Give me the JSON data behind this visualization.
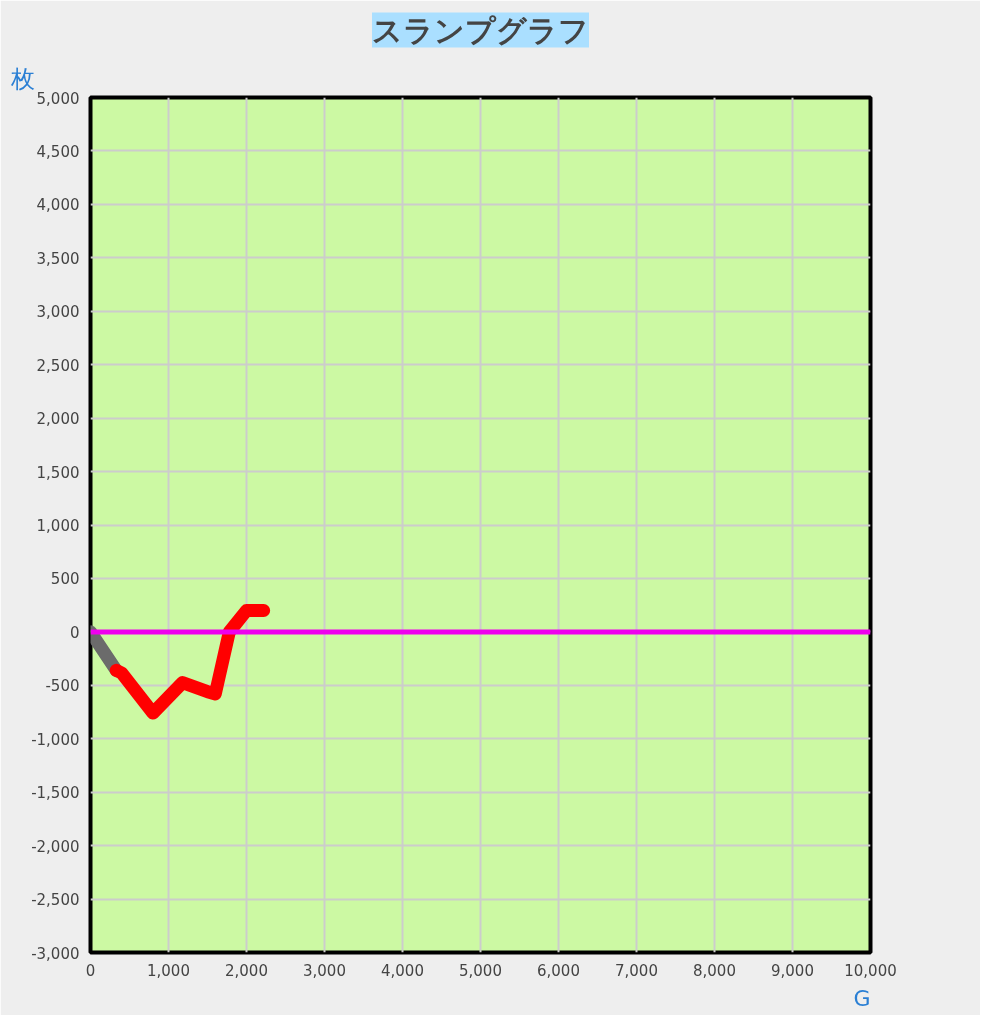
{
  "chart_data": {
    "type": "line",
    "title": "スランプグラフ",
    "xlabel": "G",
    "ylabel": "枚",
    "xlim": [
      0,
      10000
    ],
    "xticks": [
      0,
      {
        "value": 1000,
        "label": "1,000"
      },
      {
        "value": 2000,
        "label": "2,000"
      },
      {
        "value": 3000,
        "label": "3,000"
      },
      {
        "value": 4000,
        "label": "4,000"
      },
      {
        "value": 5000,
        "label": "5,000"
      },
      {
        "value": 6000,
        "label": "6,000"
      },
      {
        "value": 7000,
        "label": "7,000"
      },
      {
        "value": 8000,
        "label": "8,000"
      },
      {
        "value": 9000,
        "label": "9,000"
      },
      {
        "value": 10000,
        "label": "10,000"
      }
    ],
    "ylim": [
      -3000,
      5000
    ],
    "yticks": [
      {
        "value": -3000,
        "label": "-3,000"
      },
      {
        "value": -2500,
        "label": "-2,500"
      },
      {
        "value": -2000,
        "label": "-2,000"
      },
      {
        "value": -1500,
        "label": "-1,500"
      },
      {
        "value": -1000,
        "label": "-1,000"
      },
      -500,
      0,
      500,
      {
        "value": 1000,
        "label": "1,000"
      },
      {
        "value": 1500,
        "label": "1,500"
      },
      {
        "value": 2000,
        "label": "2,000"
      },
      {
        "value": 2500,
        "label": "2,500"
      },
      {
        "value": 3000,
        "label": "3,000"
      },
      {
        "value": 3500,
        "label": "3,500"
      },
      {
        "value": 4000,
        "label": "4,000"
      },
      {
        "value": 4500,
        "label": "4,500"
      },
      {
        "value": 5000,
        "label": "5,000"
      }
    ],
    "grid": true,
    "marker": "none",
    "line_style": "solid",
    "series": [
      {
        "color": "#6b6b6b",
        "x": [
          0,
          330
        ],
        "values": [
          0,
          -360
        ]
      },
      {
        "color": "#ff0000",
        "x": [
          330,
          400,
          800,
          1180,
          1500,
          1600,
          1780,
          2000,
          2220
        ],
        "values": [
          -360,
          -385,
          -760,
          -475,
          -560,
          -580,
          0,
          200,
          200
        ]
      }
    ],
    "ref_lines": [
      {
        "axis": "y",
        "value": 0,
        "color": "#ee00ee"
      }
    ]
  }
}
